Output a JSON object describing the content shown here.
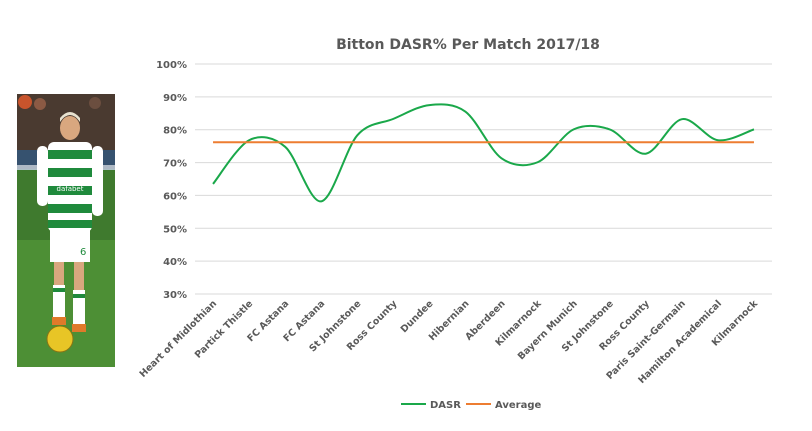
{
  "chart_data": {
    "type": "line",
    "title": "Bitton DASR% Per Match 2017/18",
    "categories": [
      "Heart of Midlothian",
      "Partick Thistle",
      "FC Astana",
      "FC Astana",
      "St Johnstone",
      "Ross County",
      "Dundee",
      "Hibernian",
      "Aberdeen",
      "Kilmarnock",
      "Bayern Munich",
      "St Johnstone",
      "Ross County",
      "Paris Saint-Germain",
      "Hamilton Academical",
      "Kilmarnock"
    ],
    "yticks": [
      "30%",
      "40%",
      "50%",
      "60%",
      "70%",
      "80%",
      "90%",
      "100%"
    ],
    "ylim": [
      30,
      100
    ],
    "series": [
      {
        "name": "DASR",
        "color": "#1aa84a",
        "values": [
          63.5,
          76.8,
          74.8,
          58.2,
          78.3,
          83.3,
          87.5,
          85.5,
          71.3,
          70.1,
          80.1,
          80.1,
          72.7,
          83.2,
          76.8,
          80.1
        ]
      },
      {
        "name": "Average",
        "color": "#ed7d31",
        "values": [
          76.2,
          76.2,
          76.2,
          76.2,
          76.2,
          76.2,
          76.2,
          76.2,
          76.2,
          76.2,
          76.2,
          76.2,
          76.2,
          76.2,
          76.2,
          76.2
        ]
      }
    ],
    "grid": true,
    "legend": "bottom"
  },
  "photo": {
    "description_icon": "player-photo",
    "shirt_sponsor": "dafabet",
    "shirt_number": "6"
  }
}
